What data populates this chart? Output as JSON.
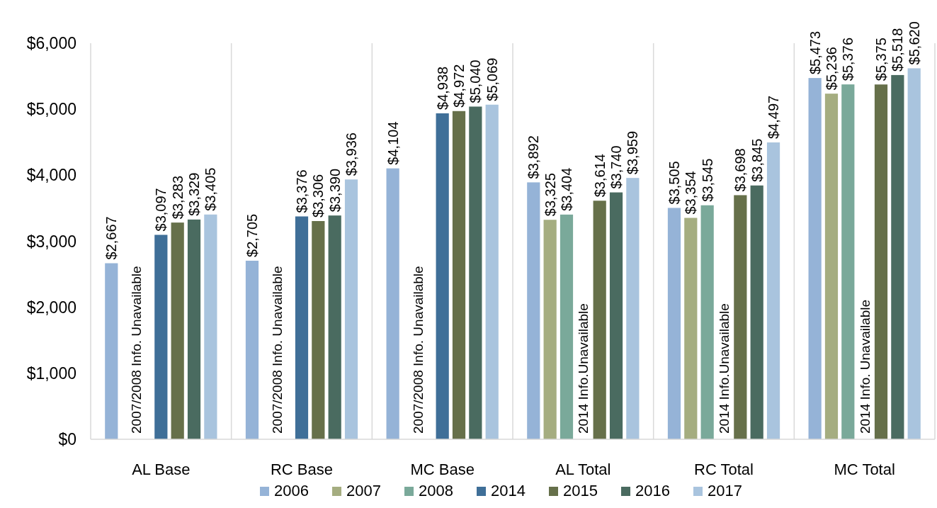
{
  "chart_data": {
    "type": "bar",
    "categories": [
      "AL Base",
      "RC Base",
      "MC Base",
      "AL Total",
      "RC Total",
      "MC Total"
    ],
    "series": [
      {
        "name": "2006",
        "color": "#95b3d7",
        "values": [
          2667,
          2705,
          4104,
          3892,
          3505,
          5473
        ],
        "value_labels": [
          "$2,667",
          "$2,705",
          "$4,104",
          "$3,892",
          "$3,505",
          "$5,473"
        ]
      },
      {
        "name": "2007",
        "color": "#a5ad80",
        "values": [
          null,
          null,
          null,
          3325,
          3354,
          5236
        ],
        "value_labels": [
          null,
          null,
          null,
          "$3,325",
          "$3,354",
          "$5,236"
        ]
      },
      {
        "name": "2008",
        "color": "#7aa99a",
        "values": [
          null,
          null,
          null,
          3404,
          3545,
          5376
        ],
        "value_labels": [
          null,
          null,
          null,
          "$3,404",
          "$3,545",
          "$5,376"
        ]
      },
      {
        "name": "2014",
        "color": "#3f6f98",
        "values": [
          3097,
          3376,
          4938,
          null,
          null,
          null
        ],
        "value_labels": [
          "$3,097",
          "$3,376",
          "$4,938",
          null,
          null,
          null
        ]
      },
      {
        "name": "2015",
        "color": "#66704a",
        "values": [
          3283,
          3306,
          4972,
          3614,
          3698,
          5375
        ],
        "value_labels": [
          "$3,283",
          "$3,306",
          "$4,972",
          "$3,614",
          "$3,698",
          "$5,375"
        ]
      },
      {
        "name": "2016",
        "color": "#4a6b60",
        "values": [
          3329,
          3390,
          5040,
          3740,
          3845,
          5518
        ],
        "value_labels": [
          "$3,329",
          "$3,390",
          "$5,040",
          "$3,740",
          "$3,845",
          "$5,518"
        ]
      },
      {
        "name": "2017",
        "color": "#a9c4de",
        "values": [
          3405,
          3936,
          5069,
          3959,
          4497,
          5620
        ],
        "value_labels": [
          "$3,405",
          "$3,936",
          "$5,069",
          "$3,959",
          "$4,497",
          "$5,620"
        ]
      }
    ],
    "ylim": [
      0,
      6000
    ],
    "yticks": [
      {
        "value": 0,
        "label": "$0"
      },
      {
        "value": 1000,
        "label": "$1,000"
      },
      {
        "value": 2000,
        "label": "$2,000"
      },
      {
        "value": 3000,
        "label": "$3,000"
      },
      {
        "value": 4000,
        "label": "$4,000"
      },
      {
        "value": 5000,
        "label": "$5,000"
      },
      {
        "value": 6000,
        "label": "$6,000"
      }
    ],
    "grid": "x",
    "legend": "bottom",
    "annotations": [
      "2007/2008 Info. Unavailable",
      "2007/2008 Info. Unavailable",
      "2007/2008 Info. Unavailable",
      "2014 Info.Unavailable",
      "2014 Info.Unavailable",
      "2014 Info. Unavailable"
    ]
  }
}
